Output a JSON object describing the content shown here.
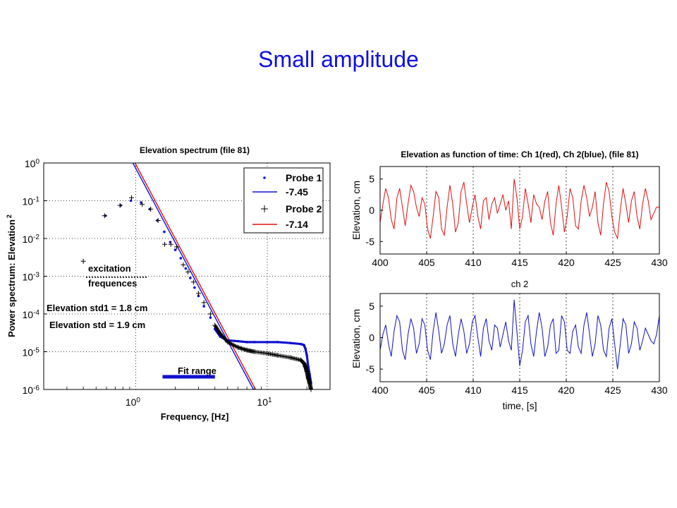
{
  "slide": {
    "title": "Small amplitude"
  },
  "chart_data": [
    {
      "type": "scatter",
      "title": "Elevation spectrum (file 81)",
      "xlabel": "Frequency, [Hz]",
      "ylabel": "Power spectrum: Elevation",
      "ylabel_sup": "2",
      "xscale": "log",
      "yscale": "log",
      "xlim": [
        0.2,
        30
      ],
      "ylim": [
        1e-06,
        1
      ],
      "grid": "major, dotted",
      "x_ticks": [
        {
          "base": "10",
          "exp": "0"
        },
        {
          "base": "10",
          "exp": "1"
        }
      ],
      "y_ticks": [
        {
          "base": "10",
          "exp": "0"
        },
        {
          "base": "10",
          "exp": "-1"
        },
        {
          "base": "10",
          "exp": "-2"
        },
        {
          "base": "10",
          "exp": "-3"
        },
        {
          "base": "10",
          "exp": "-4"
        },
        {
          "base": "10",
          "exp": "-5"
        },
        {
          "base": "10",
          "exp": "-6"
        }
      ],
      "legend": {
        "placement": "top-right",
        "entries": [
          {
            "label": "Probe 1",
            "marker": "dot",
            "color": "#1010d0"
          },
          {
            "label": "-7.45",
            "marker": "line",
            "color": "#1010d0"
          },
          {
            "label": "Probe 2",
            "marker": "plus",
            "color": "#000000"
          },
          {
            "label": "-7.14",
            "marker": "line",
            "color": "#e01010"
          }
        ]
      },
      "annotations": {
        "excitation_line1": "excitation",
        "excitation_line2": "frequences",
        "std1": "Elevation std1 = 1.8 cm",
        "std2": "Elevation std = 1.9 cm",
        "fit_range": "Fit range"
      },
      "fit_range_hz": [
        1.6,
        4.0
      ],
      "series": [
        {
          "name": "Probe 1",
          "color": "#1010d0",
          "marker": "dot",
          "x": [
            0.59,
            0.77,
            0.92,
            1.1,
            1.28,
            1.46,
            1.65,
            1.83,
            2.0,
            2.2,
            2.4,
            2.6,
            2.8,
            3.0,
            3.3,
            3.7,
            4.0,
            4.4,
            5.0,
            6.0,
            7.0,
            8.0,
            10.0,
            12.0,
            15.0,
            18.0,
            19.0,
            19.5,
            20.0,
            20.5,
            21.0,
            21.5
          ],
          "y": [
            0.04,
            0.075,
            0.1,
            0.09,
            0.06,
            0.03,
            0.015,
            0.008,
            0.005,
            0.003,
            0.0016,
            0.0009,
            0.0005,
            0.0003,
            0.00016,
            8e-05,
            4e-05,
            2.5e-05,
            2e-05,
            1.9e-05,
            1.8e-05,
            1.8e-05,
            1.8e-05,
            1.8e-05,
            1.7e-05,
            1.6e-05,
            1.5e-05,
            1.2e-05,
            8e-06,
            4e-06,
            2.5e-06,
            1.5e-06
          ]
        },
        {
          "name": "Probe 2",
          "color": "#000000",
          "marker": "plus",
          "x": [
            0.4,
            0.58,
            0.76,
            0.93,
            1.12,
            1.3,
            1.48,
            1.66,
            1.85,
            2.05,
            2.3,
            2.5,
            2.75,
            3.0,
            3.3,
            3.7,
            4.0,
            4.4,
            5.0,
            6.0,
            7.0,
            8.0,
            10.0,
            12.0,
            15.0,
            18.0,
            19.0,
            19.5,
            20.0,
            20.5,
            21.0,
            21.5
          ],
          "y": [
            0.0025,
            0.04,
            0.075,
            0.12,
            0.08,
            0.06,
            0.03,
            0.007,
            0.007,
            0.006,
            0.002,
            0.0013,
            0.0007,
            0.00035,
            0.0002,
            0.0001,
            5e-05,
            3e-05,
            1.8e-05,
            1.3e-05,
            1.1e-05,
            1e-05,
            9e-06,
            8e-06,
            7e-06,
            6e-06,
            5e-06,
            4e-06,
            3e-06,
            2e-06,
            1.5e-06,
            1e-06
          ]
        },
        {
          "name": "-7.45",
          "color": "#1010d0",
          "kind": "fit",
          "slope": -7.45,
          "x0": 1.0,
          "y0": 1.0
        },
        {
          "name": "-7.14",
          "color": "#e01010",
          "kind": "fit",
          "slope": -7.14,
          "x0": 1.0,
          "y0": 1.0
        }
      ]
    },
    {
      "type": "line",
      "title": "Elevation as function of time: Ch 1(red), Ch 2(blue), (file 81)",
      "xlabel": "",
      "ylabel": "Elevation, cm",
      "xlim": [
        400,
        430
      ],
      "ylim": [
        -7,
        7
      ],
      "x_ticks": [
        "400",
        "405",
        "410",
        "415",
        "420",
        "425",
        "430"
      ],
      "y_ticks": [
        "5",
        "0",
        "-5"
      ],
      "grid": "vertical dashed",
      "series": [
        {
          "name": "Ch 1",
          "color": "#e01010",
          "x": [
            400.0,
            400.3,
            400.6,
            400.9,
            401.2,
            401.5,
            401.8,
            402.1,
            402.4,
            402.7,
            403.0,
            403.3,
            403.6,
            403.9,
            404.2,
            404.5,
            404.8,
            405.1,
            405.4,
            405.7,
            406.0,
            406.3,
            406.6,
            406.9,
            407.2,
            407.5,
            407.8,
            408.1,
            408.4,
            408.7,
            409.0,
            409.3,
            409.6,
            409.9,
            410.2,
            410.5,
            410.8,
            411.1,
            411.4,
            411.7,
            412.0,
            412.3,
            412.6,
            412.9,
            413.2,
            413.5,
            413.8,
            414.1,
            414.4,
            414.7,
            415.0,
            415.3,
            415.6,
            415.9,
            416.2,
            416.5,
            416.8,
            417.1,
            417.4,
            417.7,
            418.0,
            418.3,
            418.6,
            418.9,
            419.2,
            419.5,
            419.8,
            420.1,
            420.4,
            420.7,
            421.0,
            421.3,
            421.6,
            421.9,
            422.2,
            422.5,
            422.8,
            423.1,
            423.4,
            423.7,
            424.0,
            424.3,
            424.6,
            424.9,
            425.2,
            425.5,
            425.8,
            426.1,
            426.4,
            426.7,
            427.0,
            427.3,
            427.6,
            427.9,
            428.2,
            428.5,
            428.8,
            429.1,
            429.4,
            429.7,
            430.0
          ],
          "y": [
            -2.0,
            1.0,
            3.5,
            2.0,
            -1.5,
            -3.0,
            2.0,
            3.5,
            0.5,
            -2.5,
            1.0,
            4.0,
            3.0,
            0.5,
            -1.0,
            2.0,
            1.0,
            -3.0,
            -4.5,
            -1.0,
            3.0,
            2.0,
            -3.0,
            -4.0,
            0.5,
            4.0,
            1.0,
            -3.5,
            -2.0,
            3.0,
            4.5,
            1.0,
            -2.0,
            0.5,
            2.5,
            -1.0,
            -3.0,
            1.5,
            2.0,
            -1.5,
            1.0,
            2.0,
            -0.5,
            1.0,
            2.5,
            0.0,
            1.5,
            -3.0,
            5.0,
            2.0,
            -3.0,
            -1.0,
            3.5,
            1.0,
            -2.0,
            2.5,
            1.0,
            0.5,
            -1.5,
            1.5,
            3.0,
            -2.0,
            -4.0,
            1.0,
            4.0,
            0.5,
            -3.5,
            -1.0,
            3.5,
            2.0,
            -2.5,
            -3.0,
            1.5,
            4.0,
            2.0,
            -1.0,
            0.5,
            3.0,
            -2.0,
            -4.0,
            1.0,
            4.5,
            3.0,
            -1.0,
            -3.5,
            -4.5,
            0.0,
            3.5,
            1.0,
            -2.0,
            1.5,
            3.0,
            -1.0,
            -3.0,
            1.0,
            3.5,
            1.5,
            -1.5,
            -0.5,
            0.5,
            0.5
          ]
        }
      ]
    },
    {
      "type": "line",
      "title": "ch 2",
      "xlabel": "time, [s]",
      "ylabel": "Elevation, cm",
      "xlim": [
        400,
        430
      ],
      "ylim": [
        -7,
        7
      ],
      "x_ticks": [
        "400",
        "405",
        "410",
        "415",
        "420",
        "425",
        "430"
      ],
      "y_ticks": [
        "5",
        "0",
        "-5"
      ],
      "grid": "vertical dashed",
      "series": [
        {
          "name": "Ch 2",
          "color": "#1010c0",
          "x": [
            400.0,
            400.3,
            400.6,
            400.9,
            401.2,
            401.5,
            401.8,
            402.1,
            402.4,
            402.7,
            403.0,
            403.3,
            403.6,
            403.9,
            404.2,
            404.5,
            404.8,
            405.1,
            405.4,
            405.7,
            406.0,
            406.3,
            406.6,
            406.9,
            407.2,
            407.5,
            407.8,
            408.1,
            408.4,
            408.7,
            409.0,
            409.3,
            409.6,
            409.9,
            410.2,
            410.5,
            410.8,
            411.1,
            411.4,
            411.7,
            412.0,
            412.3,
            412.6,
            412.9,
            413.2,
            413.5,
            413.8,
            414.1,
            414.4,
            414.7,
            415.0,
            415.3,
            415.6,
            415.9,
            416.2,
            416.5,
            416.8,
            417.1,
            417.4,
            417.7,
            418.0,
            418.3,
            418.6,
            418.9,
            419.2,
            419.5,
            419.8,
            420.1,
            420.4,
            420.7,
            421.0,
            421.3,
            421.6,
            421.9,
            422.2,
            422.5,
            422.8,
            423.1,
            423.4,
            423.7,
            424.0,
            424.3,
            424.6,
            424.9,
            425.2,
            425.5,
            425.8,
            426.1,
            426.4,
            426.7,
            427.0,
            427.3,
            427.6,
            427.9,
            428.2,
            428.5,
            428.8,
            429.1,
            429.4,
            429.7,
            430.0
          ],
          "y": [
            -2.0,
            0.5,
            2.0,
            -1.0,
            -3.0,
            1.0,
            3.5,
            2.5,
            -2.0,
            -3.5,
            0.5,
            3.0,
            1.5,
            -2.5,
            -1.0,
            3.0,
            2.0,
            -2.0,
            -3.5,
            1.0,
            4.0,
            1.0,
            -2.5,
            -1.0,
            2.0,
            3.5,
            -1.0,
            -3.0,
            0.5,
            3.0,
            1.0,
            -2.5,
            -1.0,
            2.5,
            3.5,
            0.0,
            -3.0,
            1.5,
            3.0,
            -0.5,
            -2.0,
            2.0,
            1.5,
            -1.5,
            0.5,
            2.5,
            -0.5,
            -2.0,
            6.0,
            1.0,
            -4.5,
            -2.0,
            2.5,
            3.5,
            -1.0,
            -3.0,
            1.0,
            4.0,
            1.5,
            -3.0,
            -1.5,
            2.0,
            3.0,
            -2.5,
            -2.0,
            3.5,
            2.5,
            -2.0,
            -2.5,
            1.0,
            2.0,
            -1.5,
            -2.5,
            2.0,
            4.0,
            0.5,
            -3.0,
            -1.0,
            3.5,
            2.0,
            -2.0,
            -3.0,
            1.5,
            3.0,
            -1.0,
            -5.0,
            -1.0,
            3.0,
            2.0,
            -2.5,
            -1.0,
            2.5,
            1.5,
            -2.0,
            -0.5,
            1.5,
            0.5,
            -0.5,
            -1.0,
            0.5,
            3.5
          ]
        }
      ]
    }
  ]
}
